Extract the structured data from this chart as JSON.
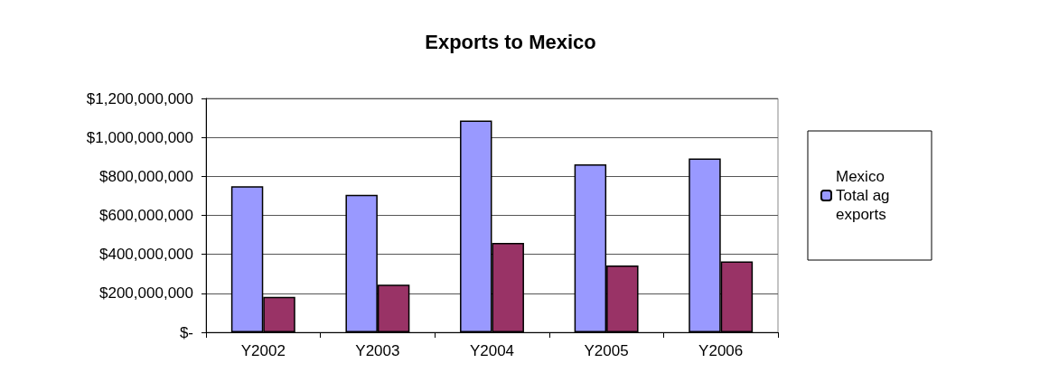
{
  "chart_data": {
    "type": "bar",
    "title": "Exports to Mexico",
    "categories": [
      "Y2002",
      "Y2003",
      "Y2004",
      "Y2005",
      "Y2006"
    ],
    "series": [
      {
        "name": "Mexico Total ag exports",
        "color": "#9999ff",
        "values": [
          750000000,
          705000000,
          1087000000,
          862000000,
          892000000
        ]
      },
      {
        "color": "#993366",
        "values": [
          182000000,
          244000000,
          459000000,
          343000000,
          364000000
        ]
      }
    ],
    "ylim": [
      0,
      1200000000
    ],
    "yticks": [
      {
        "value": 0,
        "label": "$-"
      },
      {
        "value": 200000000,
        "label": "$200,000,000"
      },
      {
        "value": 400000000,
        "label": "$400,000,000"
      },
      {
        "value": 600000000,
        "label": "$600,000,000"
      },
      {
        "value": 800000000,
        "label": "$800,000,000"
      },
      {
        "value": 1000000000,
        "label": "$1,000,000,000"
      },
      {
        "value": 1200000000,
        "label": "$1,200,000,000"
      }
    ],
    "grid": "y",
    "legend": "right"
  }
}
